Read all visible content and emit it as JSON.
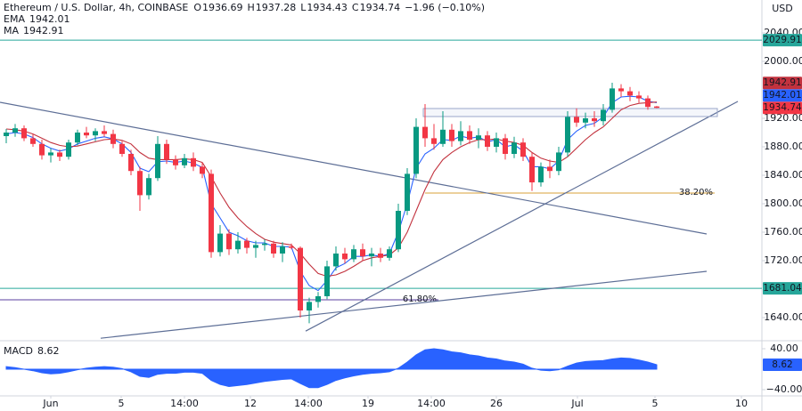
{
  "chart_data": {
    "type": "candlestick",
    "title": "Ethereum / U.S. Dollar, 4h, COINBASE",
    "ohlc_letters": [
      "O",
      "H",
      "L",
      "C"
    ],
    "change": "−1.96 (−0.10%)",
    "currency": "USD",
    "up_color": "#089981",
    "down_color": "#f23645",
    "xlim": [
      -0.7,
      84.8
    ],
    "xticks": [
      {
        "value": 5.0,
        "label": "Jun"
      },
      {
        "value": 12.9,
        "label": "5"
      },
      {
        "value": 20.0,
        "label": "14:00"
      },
      {
        "value": 27.4,
        "label": "12"
      },
      {
        "value": 33.9,
        "label": "14:00"
      },
      {
        "value": 40.6,
        "label": "19"
      },
      {
        "value": 47.7,
        "label": "14:00"
      },
      {
        "value": 55.0,
        "label": "26"
      },
      {
        "value": 64.1,
        "label": "Jul"
      },
      {
        "value": 72.8,
        "label": "5"
      },
      {
        "value": 82.5,
        "label": "10"
      }
    ],
    "ylim": [
      1611.25,
      2086.25
    ],
    "yticks": [
      {
        "value": 2040,
        "label": "2040.00"
      },
      {
        "value": 2000,
        "label": "2000.00"
      },
      {
        "value": 1920,
        "label": "1920.00"
      },
      {
        "value": 1880,
        "label": "1880.00"
      },
      {
        "value": 1840,
        "label": "1840.00"
      },
      {
        "value": 1800,
        "label": "1800.00"
      },
      {
        "value": 1760,
        "label": "1760.00"
      },
      {
        "value": 1720,
        "label": "1720.00"
      },
      {
        "value": 1640,
        "label": "1640.00"
      }
    ],
    "open": [
      1895,
      1900,
      1906,
      1892,
      1884,
      1868,
      1872,
      1866,
      1886,
      1900,
      1896,
      1902,
      1898,
      1884,
      1870,
      1846,
      1812,
      1836,
      1884,
      1862,
      1854,
      1864,
      1852,
      1842,
      1732,
      1758,
      1736,
      1748,
      1738,
      1742,
      1744,
      1730,
      1740,
      1738,
      1650,
      1662,
      1670,
      1712,
      1730,
      1722,
      1736,
      1726,
      1730,
      1724,
      1736,
      1790,
      1842,
      1908,
      1892,
      1884,
      1904,
      1888,
      1902,
      1890,
      1896,
      1880,
      1892,
      1870,
      1886,
      1866,
      1830,
      1852,
      1846,
      1872,
      1922,
      1914,
      1920,
      1916,
      1932,
      1962,
      1958,
      1952,
      1948,
      1936.69
    ],
    "high": [
      1905,
      1912,
      1910,
      1898,
      1890,
      1878,
      1876,
      1890,
      1904,
      1908,
      1906,
      1910,
      1904,
      1888,
      1876,
      1852,
      1842,
      1895,
      1890,
      1868,
      1870,
      1872,
      1858,
      1848,
      1770,
      1764,
      1760,
      1752,
      1748,
      1750,
      1748,
      1746,
      1744,
      1740,
      1668,
      1676,
      1720,
      1740,
      1738,
      1742,
      1744,
      1738,
      1738,
      1740,
      1800,
      1850,
      1920,
      1940,
      1912,
      1930,
      1912,
      1916,
      1910,
      1906,
      1902,
      1900,
      1898,
      1894,
      1892,
      1872,
      1858,
      1862,
      1880,
      1930,
      1934,
      1928,
      1930,
      1940,
      1970,
      1968,
      1964,
      1958,
      1952,
      1937.28
    ],
    "low": [
      1885,
      1894,
      1888,
      1880,
      1862,
      1858,
      1860,
      1862,
      1882,
      1892,
      1888,
      1894,
      1878,
      1866,
      1840,
      1790,
      1806,
      1832,
      1856,
      1848,
      1850,
      1846,
      1836,
      1724,
      1726,
      1728,
      1730,
      1730,
      1724,
      1734,
      1724,
      1718,
      1736,
      1640,
      1632,
      1654,
      1666,
      1706,
      1716,
      1718,
      1720,
      1712,
      1718,
      1720,
      1732,
      1784,
      1836,
      1880,
      1876,
      1880,
      1880,
      1882,
      1884,
      1878,
      1874,
      1872,
      1862,
      1864,
      1860,
      1818,
      1824,
      1836,
      1840,
      1866,
      1908,
      1906,
      1908,
      1910,
      1928,
      1950,
      1944,
      1942,
      1932,
      1934.43
    ],
    "close": [
      1900,
      1906,
      1892,
      1884,
      1868,
      1872,
      1866,
      1886,
      1900,
      1896,
      1902,
      1898,
      1884,
      1870,
      1846,
      1812,
      1836,
      1884,
      1862,
      1854,
      1864,
      1852,
      1842,
      1732,
      1758,
      1736,
      1748,
      1738,
      1742,
      1744,
      1730,
      1740,
      1738,
      1650,
      1662,
      1670,
      1712,
      1730,
      1722,
      1736,
      1726,
      1730,
      1724,
      1736,
      1790,
      1842,
      1908,
      1892,
      1884,
      1904,
      1888,
      1902,
      1890,
      1896,
      1880,
      1892,
      1870,
      1886,
      1866,
      1830,
      1852,
      1846,
      1872,
      1922,
      1914,
      1920,
      1916,
      1932,
      1962,
      1958,
      1952,
      1948,
      1936,
      1934.74
    ],
    "indicators": [
      {
        "name": "EMA",
        "color": "#2962ff",
        "values": [
          1898,
          1900,
          1898,
          1893,
          1884,
          1878,
          1874,
          1877,
          1884,
          1888,
          1892,
          1894,
          1891,
          1884,
          1872,
          1850,
          1845,
          1859,
          1860,
          1858,
          1860,
          1857,
          1851,
          1800,
          1780,
          1760,
          1755,
          1748,
          1745,
          1745,
          1740,
          1740,
          1739,
          1705,
          1685,
          1678,
          1692,
          1710,
          1716,
          1726,
          1726,
          1728,
          1726,
          1730,
          1760,
          1800,
          1850,
          1870,
          1878,
          1890,
          1889,
          1895,
          1892,
          1894,
          1887,
          1890,
          1880,
          1883,
          1874,
          1852,
          1852,
          1849,
          1860,
          1890,
          1902,
          1910,
          1913,
          1922,
          1942,
          1950,
          1951,
          1950,
          1944,
          1942.01
        ]
      },
      {
        "name": "MA",
        "color": "#c2323e",
        "values": [
          1905,
          1904,
          1902,
          1898,
          1892,
          1886,
          1882,
          1880,
          1881,
          1884,
          1887,
          1890,
          1891,
          1889,
          1884,
          1872,
          1864,
          1862,
          1862,
          1862,
          1863,
          1862,
          1858,
          1838,
          1815,
          1795,
          1780,
          1768,
          1758,
          1750,
          1746,
          1744,
          1742,
          1730,
          1715,
          1702,
          1698,
          1700,
          1705,
          1712,
          1720,
          1724,
          1726,
          1728,
          1738,
          1760,
          1790,
          1820,
          1845,
          1862,
          1872,
          1880,
          1886,
          1890,
          1890,
          1891,
          1888,
          1886,
          1882,
          1872,
          1864,
          1860,
          1858,
          1866,
          1878,
          1890,
          1900,
          1908,
          1920,
          1932,
          1938,
          1941,
          1942,
          1942.91
        ]
      }
    ],
    "levels": [
      {
        "value": 2029.91,
        "color": "#26a69a"
      },
      {
        "value": 1681.04,
        "color": "#26a69a"
      }
    ],
    "fib": [
      {
        "label": "38.20%",
        "value": 1815,
        "x": [
          47,
          79.5
        ],
        "color": "#d8a13a"
      },
      {
        "label": "61.80%",
        "value": 1665,
        "x": [
          -0.7,
          48.5
        ],
        "color": "#5b3fa0"
      }
    ],
    "trendlines": [
      {
        "x": [
          -0.7,
          78.6
        ],
        "y": [
          1942.5,
          1757.5
        ],
        "color": "#5d6e96"
      },
      {
        "x": [
          33.6,
          82.1
        ],
        "y": [
          1621,
          1943.75
        ],
        "color": "#5d6e96"
      },
      {
        "x": [
          10.6,
          78.6
        ],
        "y": [
          1611,
          1705
        ],
        "color": "#5d6e96"
      }
    ],
    "box": {
      "x": [
        46.8,
        79.8
      ],
      "y": [
        1922.5,
        1933.75
      ]
    },
    "macd": {
      "name": "MACD",
      "color": "#2962ff",
      "ylim": [
        -52.2,
        52.2
      ],
      "yticks": [
        {
          "value": 40,
          "label": "40.00"
        },
        {
          "value": -40,
          "label": "−40.00"
        }
      ],
      "values": [
        5,
        3,
        0,
        -3,
        -7,
        -9,
        -8,
        -5,
        -1,
        2,
        4,
        5,
        4,
        1,
        -5,
        -14,
        -16,
        -10,
        -8,
        -8,
        -6,
        -6,
        -8,
        -22,
        -30,
        -34,
        -32,
        -30,
        -27,
        -24,
        -22,
        -20,
        -19,
        -28,
        -36,
        -36,
        -30,
        -22,
        -17,
        -13,
        -10,
        -8,
        -7,
        -5,
        2,
        14,
        28,
        38,
        40,
        38,
        34,
        32,
        28,
        26,
        22,
        20,
        16,
        14,
        10,
        2,
        -2,
        -3,
        -1,
        6,
        12,
        15,
        16,
        17,
        20,
        22,
        21,
        18,
        14,
        8.62
      ]
    }
  }
}
